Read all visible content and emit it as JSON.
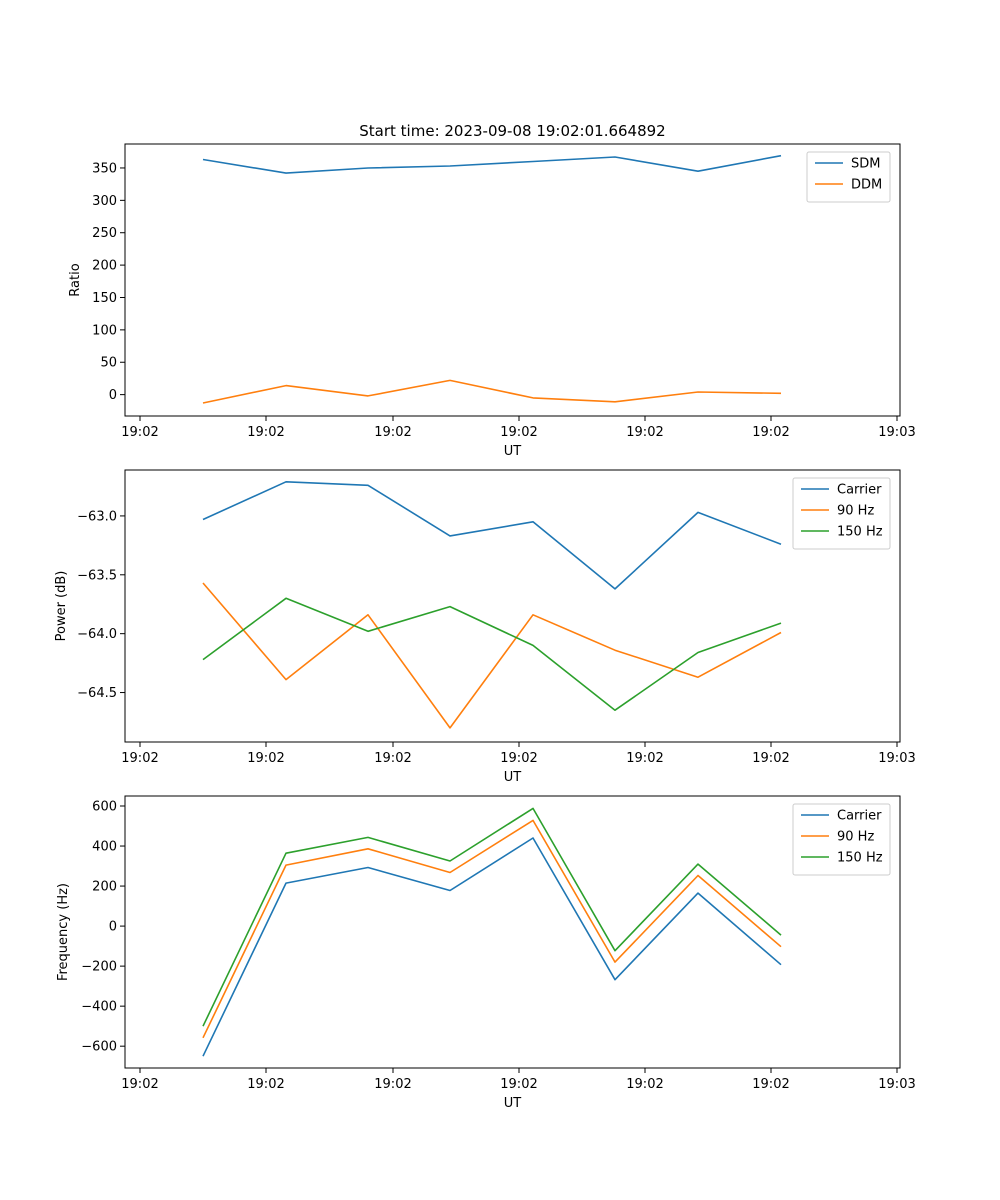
{
  "chart_data": [
    {
      "type": "line",
      "title": "Start time: 2023-09-08 19:02:01.664892",
      "xlabel": "UT",
      "ylabel": "Ratio",
      "x_ticks": [
        "19:02",
        "19:02",
        "19:02",
        "19:02",
        "19:02",
        "19:02",
        "19:03"
      ],
      "y_ticks": [
        0,
        50,
        100,
        150,
        200,
        250,
        300,
        350
      ],
      "ylim": [
        -33,
        387
      ],
      "legend": "top-right",
      "series": [
        {
          "name": "SDM",
          "color": "#1f77b4",
          "values": [
            363,
            342,
            350,
            353,
            360,
            367,
            345,
            369
          ]
        },
        {
          "name": "DDM",
          "color": "#ff7f0e",
          "values": [
            -13,
            14,
            -2,
            22,
            -5,
            -11,
            4,
            2
          ]
        }
      ]
    },
    {
      "type": "line",
      "title": "",
      "xlabel": "UT",
      "ylabel": "Power (dB)",
      "x_ticks": [
        "19:02",
        "19:02",
        "19:02",
        "19:02",
        "19:02",
        "19:02",
        "19:03"
      ],
      "y_ticks": [
        -63.0,
        -63.5,
        -64.0,
        -64.5
      ],
      "y_tick_labels": [
        "−63.0",
        "−63.5",
        "−64.0",
        "−64.5"
      ],
      "ylim": [
        -64.92,
        -62.61
      ],
      "legend": "top-right",
      "series": [
        {
          "name": "Carrier",
          "color": "#1f77b4",
          "values": [
            -63.03,
            -62.71,
            -62.74,
            -63.17,
            -63.05,
            -63.62,
            -62.97,
            -63.24
          ]
        },
        {
          "name": "90 Hz",
          "color": "#ff7f0e",
          "values": [
            -63.57,
            -64.39,
            -63.84,
            -64.8,
            -63.84,
            -64.14,
            -64.37,
            -63.99
          ]
        },
        {
          "name": "150 Hz",
          "color": "#2ca02c",
          "values": [
            -64.22,
            -63.7,
            -63.98,
            -63.77,
            -64.1,
            -64.65,
            -64.16,
            -63.91
          ]
        }
      ]
    },
    {
      "type": "line",
      "title": "",
      "xlabel": "UT",
      "ylabel": "Frequency (Hz)",
      "x_ticks": [
        "19:02",
        "19:02",
        "19:02",
        "19:02",
        "19:02",
        "19:02",
        "19:03"
      ],
      "y_ticks": [
        600,
        400,
        200,
        0,
        -200,
        -400,
        -600
      ],
      "y_tick_labels": [
        "600",
        "400",
        "200",
        "0",
        "−200",
        "−400",
        "−600"
      ],
      "ylim": [
        -709,
        650
      ],
      "legend": "top-right",
      "series": [
        {
          "name": "Carrier",
          "color": "#1f77b4",
          "values": [
            -650,
            215,
            293,
            178,
            440,
            -268,
            165,
            -193
          ]
        },
        {
          "name": "90 Hz",
          "color": "#ff7f0e",
          "values": [
            -558,
            305,
            386,
            268,
            528,
            -180,
            253,
            -103
          ]
        },
        {
          "name": "150 Hz",
          "color": "#2ca02c",
          "values": [
            -500,
            364,
            443,
            325,
            588,
            -123,
            310,
            -45
          ]
        }
      ]
    }
  ]
}
